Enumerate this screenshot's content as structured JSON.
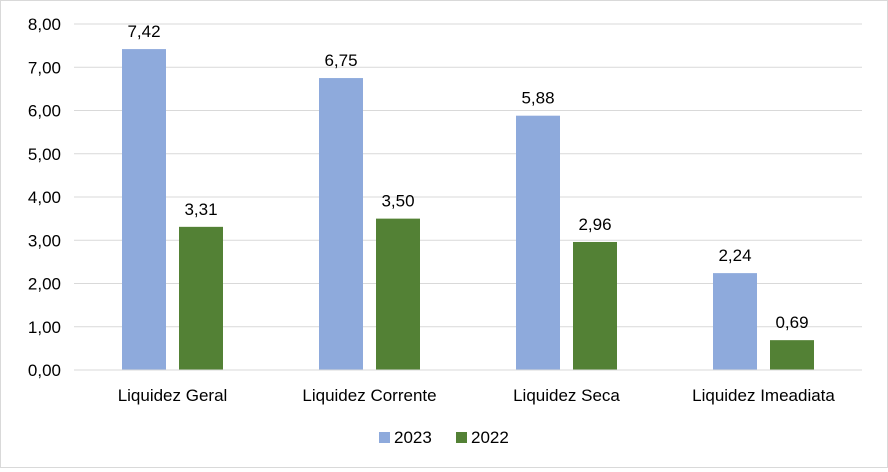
{
  "chart_data": {
    "type": "bar",
    "categories": [
      "Liquidez Geral",
      "Liquidez Corrente",
      "Liquidez Seca",
      "Liquidez Imeadiata"
    ],
    "series": [
      {
        "name": "2023",
        "values": [
          7.42,
          6.75,
          5.88,
          2.24
        ],
        "labels": [
          "7,42",
          "6,75",
          "5,88",
          "2,24"
        ],
        "color": "#8eaadc"
      },
      {
        "name": "2022",
        "values": [
          3.31,
          3.5,
          2.96,
          0.69
        ],
        "labels": [
          "3,31",
          "3,50",
          "2,96",
          "0,69"
        ],
        "color": "#538135"
      }
    ],
    "yticks": [
      "0,00",
      "1,00",
      "2,00",
      "3,00",
      "4,00",
      "5,00",
      "6,00",
      "7,00",
      "8,00"
    ],
    "ylim": [
      0,
      8
    ],
    "grid": true,
    "legend_position": "bottom"
  }
}
